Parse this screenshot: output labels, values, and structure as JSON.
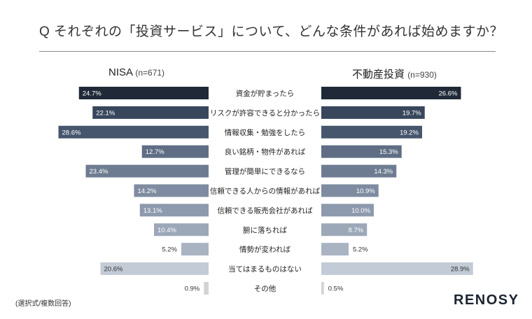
{
  "question": "Q  それぞれの「投資サービス」について、どんな条件があれば始めますか？",
  "left_header": {
    "name": "NISA",
    "n": "(n=671)"
  },
  "right_header": {
    "name": "不動産投資",
    "n": "(n=930)"
  },
  "footnote": "(選択式/複数回答)",
  "logo": "RENOSY",
  "chart_data": {
    "type": "bar",
    "categories": [
      "資金が貯まったら",
      "リスクが許容できると分かったら",
      "情報収集・勉強をしたら",
      "良い銘柄・物件があれば",
      "管理が簡単にできるなら",
      "信頼できる人からの情報があれば",
      "信頼できる販売会社があれば",
      "腑に落ちれば",
      "情勢が変われば",
      "当てはまるものはない",
      "その他"
    ],
    "series": [
      {
        "name": "NISA (n=671)",
        "values": [
          24.7,
          22.1,
          28.6,
          12.7,
          23.4,
          14.2,
          13.1,
          10.4,
          5.2,
          20.6,
          0.9
        ]
      },
      {
        "name": "不動産投資 (n=930)",
        "values": [
          26.6,
          19.7,
          19.2,
          15.3,
          14.3,
          10.9,
          10.0,
          8.7,
          5.2,
          28.9,
          0.5
        ]
      }
    ],
    "value_labels": {
      "left": [
        "24.7%",
        "22.1%",
        "28.6%",
        "12.7%",
        "23.4%",
        "14.2%",
        "13.1%",
        "10.4%",
        "5.2%",
        "20.6%",
        "0.9%"
      ],
      "right": [
        "26.6%",
        "19.7%",
        "19.2%",
        "15.3%",
        "14.3%",
        "10.9%",
        "10.0%",
        "8.7%",
        "5.2%",
        "28.9%",
        "0.5%"
      ]
    },
    "bar_colors": [
      "#1f2937",
      "#39475d",
      "#46566d",
      "#5f6e84",
      "#6e7c91",
      "#7e8ba0",
      "#8d99ad",
      "#9ca7b8",
      "#aab3c2",
      "#c3cbd6",
      "#d3d3d3"
    ],
    "label_colors": [
      "#ffffff",
      "#ffffff",
      "#ffffff",
      "#ffffff",
      "#ffffff",
      "#ffffff",
      "#ffffff",
      "#ffffff",
      "#ffffff",
      "#333333",
      "#333333"
    ]
  }
}
